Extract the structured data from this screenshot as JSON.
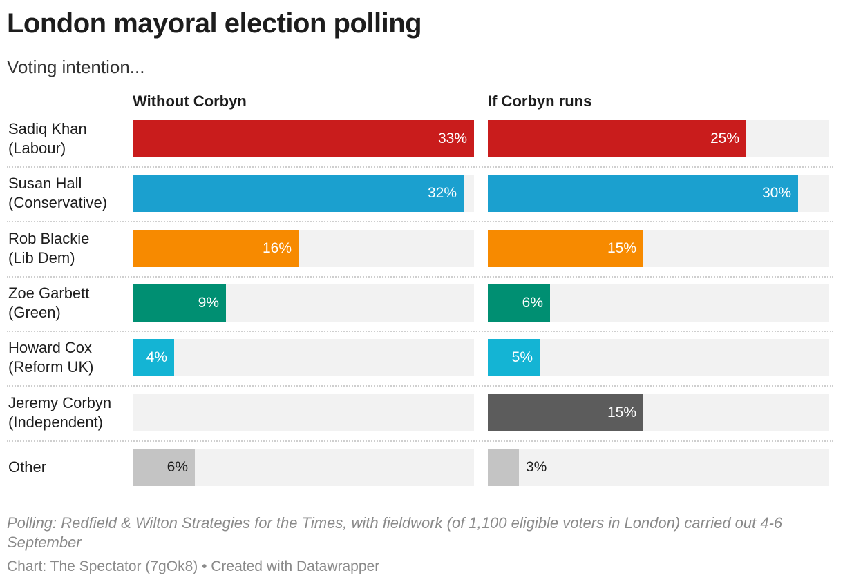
{
  "title": "London mayoral election polling",
  "subtitle": "Voting intention...",
  "notes": "Polling: Redfield & Wilton Strategies for the Times, with fieldwork (of 1,100 eligible voters in London) carried out 4-6 September",
  "byline": "Chart: The Spectator (7gOk8) • Created with Datawrapper",
  "chart_data": {
    "type": "bar",
    "orientation": "horizontal",
    "title": "London mayoral election polling",
    "subtitle": "Voting intention...",
    "xlim": [
      0,
      33
    ],
    "categories": [
      {
        "name": "Sadiq Khan",
        "party": "(Labour)",
        "color": "#c91c1c"
      },
      {
        "name": "Susan Hall",
        "party": "(Conservative)",
        "color": "#1ba0cf"
      },
      {
        "name": "Rob Blackie",
        "party": "(Lib Dem)",
        "color": "#f78a00"
      },
      {
        "name": "Zoe Garbett",
        "party": "(Green)",
        "color": "#008f72"
      },
      {
        "name": "Howard Cox",
        "party": "(Reform UK)",
        "color": "#14b4d4"
      },
      {
        "name": "Jeremy Corbyn",
        "party": "(Independent)",
        "color": "#5c5c5c"
      },
      {
        "name": "Other",
        "party": "",
        "color": "#c4c4c4"
      }
    ],
    "series": [
      {
        "name": "Without Corbyn",
        "values": [
          33,
          32,
          16,
          9,
          4,
          null,
          6
        ],
        "labels": [
          "33%",
          "32%",
          "16%",
          "9%",
          "4%",
          "",
          "6%"
        ]
      },
      {
        "name": "If Corbyn runs",
        "values": [
          25,
          30,
          15,
          6,
          5,
          15,
          3
        ],
        "labels": [
          "25%",
          "30%",
          "15%",
          "6%",
          "5%",
          "15%",
          "3%"
        ]
      }
    ]
  }
}
